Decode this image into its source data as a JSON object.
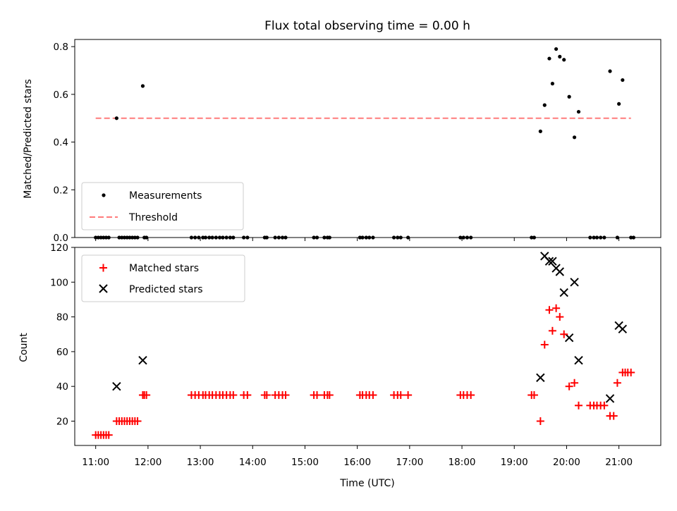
{
  "chart_data": [
    {
      "type": "scatter",
      "panel": "top",
      "title": "Flux total observing time = 0.00 h",
      "xlabel": "",
      "ylabel": "Matched/Predicted stars",
      "xlim": [
        10.6,
        21.8
      ],
      "ylim": [
        0.0,
        0.83
      ],
      "y_ticks": [
        "0.0",
        "0.2",
        "0.4",
        "0.6",
        "0.8"
      ],
      "legend_position": "lower-left",
      "series": [
        {
          "name": "Measurements",
          "color": "#000000",
          "marker": "dot",
          "x": [
            11.0,
            11.05,
            11.1,
            11.15,
            11.2,
            11.25,
            11.4,
            11.45,
            11.5,
            11.55,
            11.6,
            11.65,
            11.7,
            11.75,
            11.8,
            11.9,
            11.93,
            11.97,
            12.83,
            12.9,
            12.97,
            13.05,
            13.1,
            13.17,
            13.23,
            13.3,
            13.37,
            13.43,
            13.5,
            13.57,
            13.63,
            13.83,
            13.9,
            14.23,
            14.27,
            14.43,
            14.5,
            14.57,
            14.63,
            15.17,
            15.23,
            15.37,
            15.43,
            15.47,
            16.05,
            16.1,
            16.17,
            16.23,
            16.3,
            16.7,
            16.77,
            16.83,
            16.97,
            17.97,
            18.03,
            18.1,
            18.17,
            19.33,
            19.38,
            19.5,
            19.58,
            19.67,
            19.73,
            19.8,
            19.87,
            19.95,
            20.05,
            20.15,
            20.23,
            20.45,
            20.52,
            20.58,
            20.65,
            20.72,
            20.83,
            20.97,
            21.0,
            21.07,
            21.23,
            21.28
          ],
          "y": [
            0,
            0,
            0,
            0,
            0,
            0,
            0.5,
            0,
            0,
            0,
            0,
            0,
            0,
            0,
            0,
            0.635,
            0,
            0,
            0,
            0,
            0,
            0,
            0,
            0,
            0,
            0,
            0,
            0,
            0,
            0,
            0,
            0,
            0,
            0,
            0,
            0,
            0,
            0,
            0,
            0,
            0,
            0,
            0,
            0,
            0,
            0,
            0,
            0,
            0,
            0,
            0,
            0,
            0,
            0,
            0,
            0,
            0,
            0,
            0,
            0.445,
            0.555,
            0.75,
            0.645,
            0.79,
            0.758,
            0.745,
            0.59,
            0.42,
            0.527,
            0,
            0,
            0,
            0,
            0,
            0.697,
            0,
            0.56,
            0.66,
            0,
            0
          ]
        },
        {
          "name": "Threshold",
          "color": "#ff7b7b",
          "style": "dashed",
          "x": [
            11.0,
            21.23
          ],
          "y": [
            0.5,
            0.5
          ]
        }
      ]
    },
    {
      "type": "scatter",
      "panel": "bottom",
      "title": "",
      "xlabel": "Time (UTC)",
      "ylabel": "Count",
      "xlim": [
        10.6,
        21.8
      ],
      "ylim": [
        6,
        120
      ],
      "y_ticks": [
        "20",
        "40",
        "60",
        "80",
        "100",
        "120"
      ],
      "x_ticks": [
        "11:00",
        "12:00",
        "13:00",
        "14:00",
        "15:00",
        "16:00",
        "17:00",
        "18:00",
        "19:00",
        "20:00",
        "21:00"
      ],
      "legend_position": "upper-left",
      "series": [
        {
          "name": "Matched stars",
          "color": "#ff0000",
          "marker": "plus",
          "x": [
            11.0,
            11.05,
            11.1,
            11.15,
            11.2,
            11.25,
            11.4,
            11.45,
            11.5,
            11.55,
            11.6,
            11.65,
            11.7,
            11.75,
            11.8,
            11.9,
            11.93,
            11.97,
            12.83,
            12.9,
            12.97,
            13.05,
            13.1,
            13.17,
            13.23,
            13.3,
            13.37,
            13.43,
            13.5,
            13.57,
            13.63,
            13.83,
            13.9,
            14.23,
            14.27,
            14.43,
            14.5,
            14.57,
            14.63,
            15.17,
            15.23,
            15.37,
            15.43,
            15.47,
            16.05,
            16.1,
            16.17,
            16.23,
            16.3,
            16.7,
            16.77,
            16.83,
            16.97,
            17.97,
            18.03,
            18.1,
            18.17,
            19.33,
            19.38,
            19.5,
            19.58,
            19.67,
            19.73,
            19.8,
            19.87,
            19.95,
            20.05,
            20.15,
            20.23,
            20.45,
            20.52,
            20.58,
            20.65,
            20.72,
            20.83,
            20.9,
            20.97,
            21.07,
            21.12,
            21.17,
            21.23
          ],
          "y": [
            12,
            12,
            12,
            12,
            12,
            12,
            20,
            20,
            20,
            20,
            20,
            20,
            20,
            20,
            20,
            35,
            35,
            35,
            35,
            35,
            35,
            35,
            35,
            35,
            35,
            35,
            35,
            35,
            35,
            35,
            35,
            35,
            35,
            35,
            35,
            35,
            35,
            35,
            35,
            35,
            35,
            35,
            35,
            35,
            35,
            35,
            35,
            35,
            35,
            35,
            35,
            35,
            35,
            35,
            35,
            35,
            35,
            35,
            35,
            20,
            64,
            84,
            72,
            85,
            80,
            70,
            40,
            42,
            29,
            29,
            29,
            29,
            29,
            29,
            23,
            23,
            42,
            48,
            48,
            48,
            48
          ]
        },
        {
          "name": "Predicted stars",
          "color": "#000000",
          "marker": "x",
          "x": [
            11.4,
            11.9,
            19.5,
            19.58,
            19.67,
            19.73,
            19.8,
            19.87,
            19.95,
            20.05,
            20.15,
            20.23,
            20.83,
            21.0,
            21.07
          ],
          "y": [
            40,
            55,
            45,
            115,
            112,
            112,
            108,
            106,
            94,
            68,
            100,
            55,
            33,
            75,
            73
          ]
        }
      ]
    }
  ]
}
